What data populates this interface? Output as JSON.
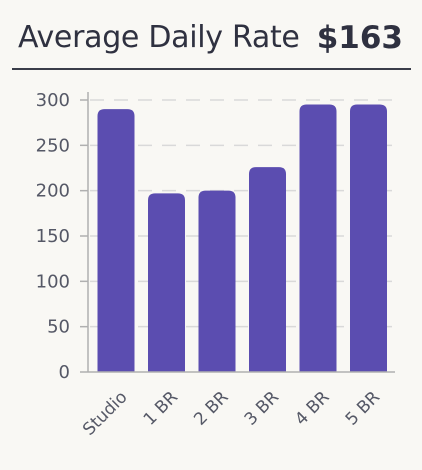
{
  "header": {
    "title": "Average Daily Rate",
    "value": "$163"
  },
  "colors": {
    "bar": "#5b4db0",
    "grid": "#d9d9d9",
    "axis": "#b0b0b0"
  },
  "chart_data": {
    "type": "bar",
    "categories": [
      "Studio",
      "1 BR",
      "2 BR",
      "3 BR",
      "4 BR",
      "5 BR"
    ],
    "values": [
      290,
      197,
      200,
      226,
      295,
      295
    ],
    "title": "Average Daily Rate",
    "xlabel": "",
    "ylabel": "",
    "ylim": [
      0,
      300
    ],
    "yticks": [
      0,
      50,
      100,
      150,
      200,
      250,
      300
    ],
    "grid": true
  }
}
